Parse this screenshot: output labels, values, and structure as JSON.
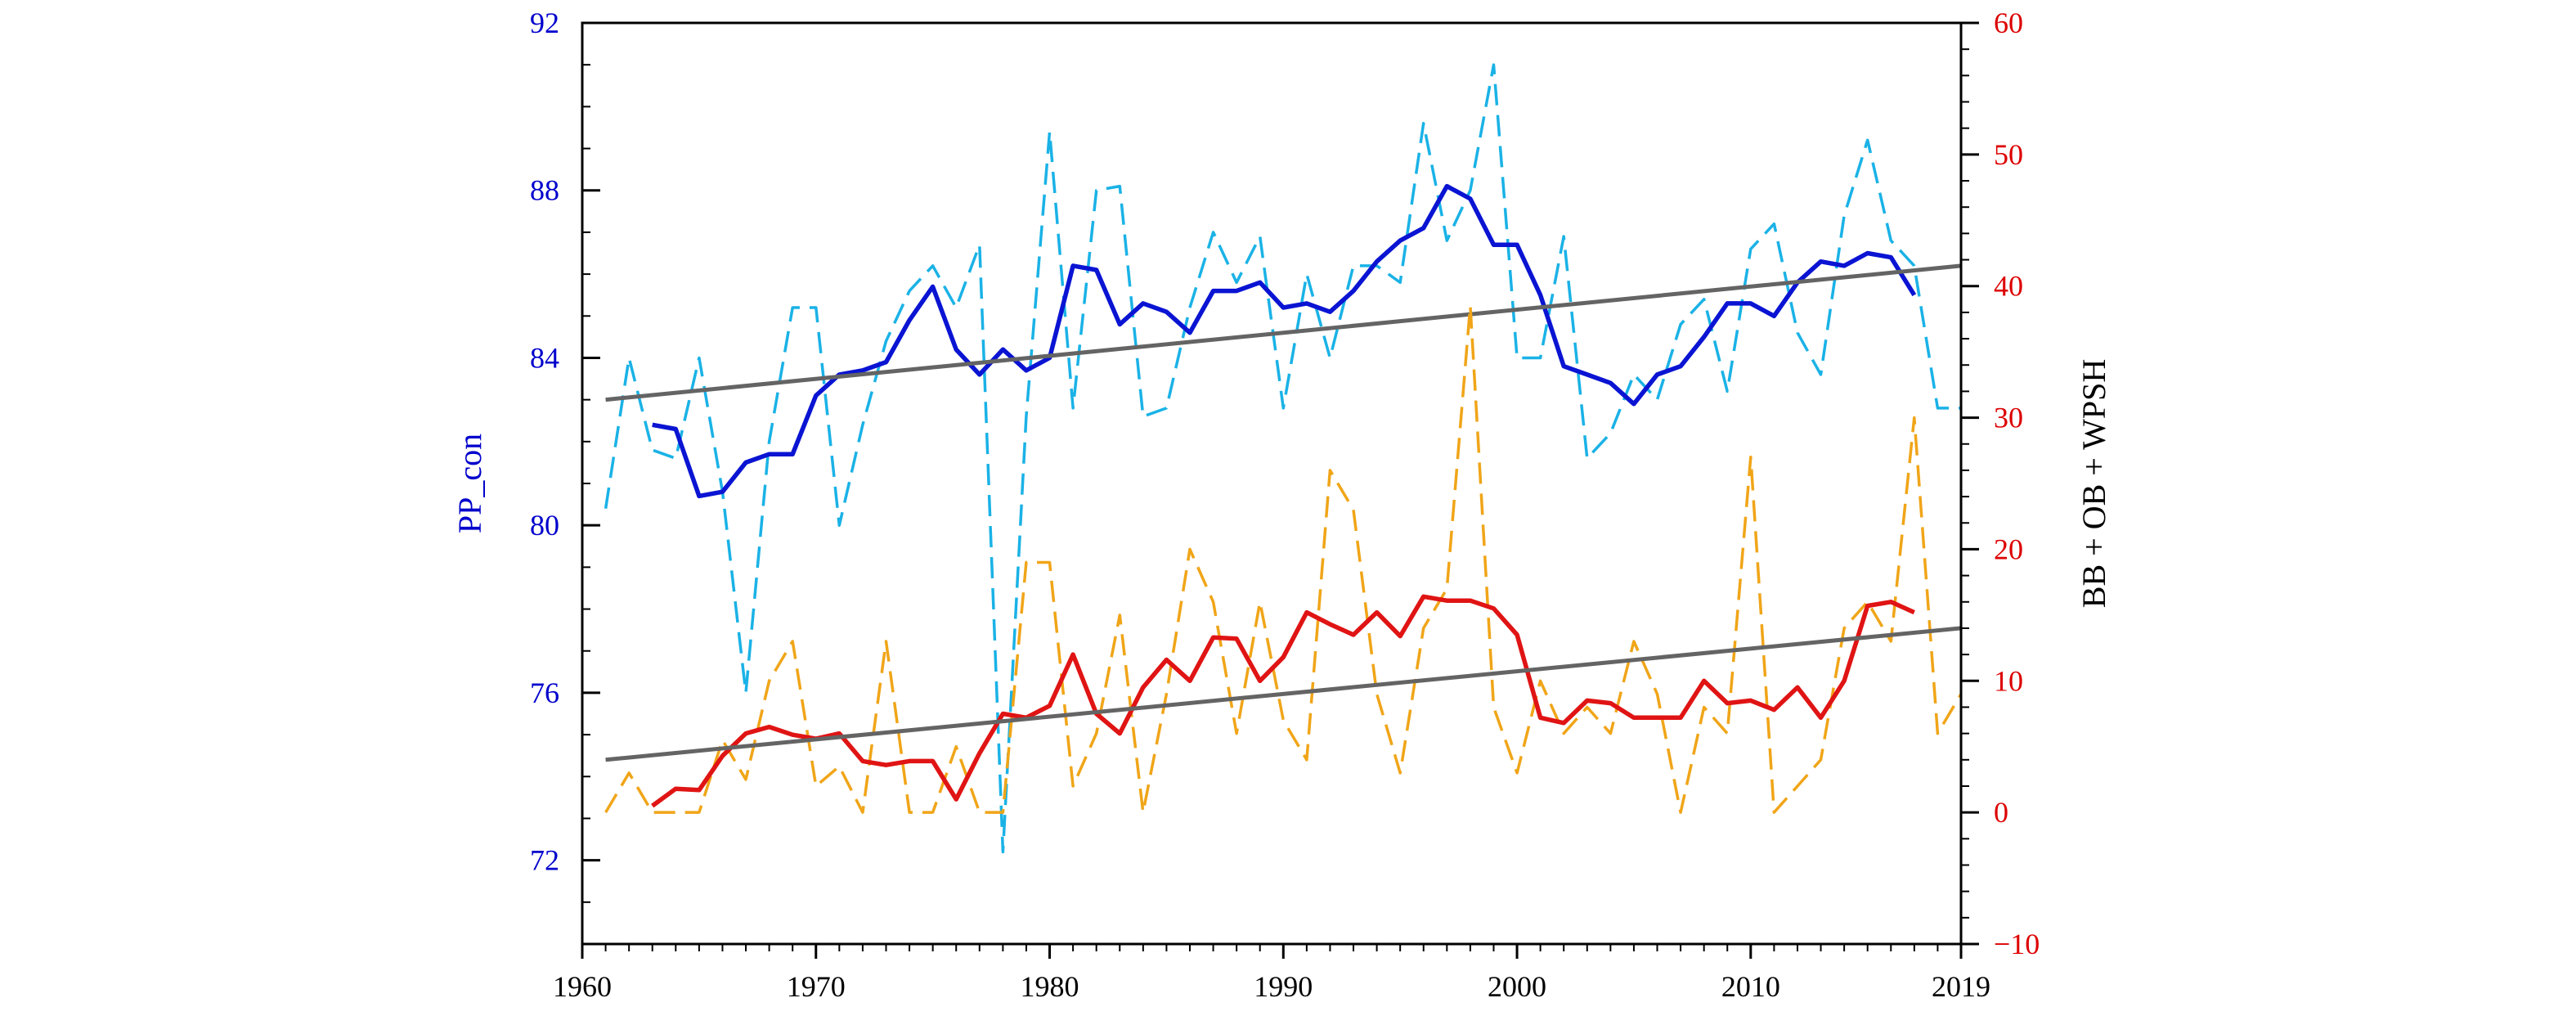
{
  "chart_data": {
    "type": "line",
    "title": "",
    "xlabel": "",
    "ylabel_left": "PP_con",
    "ylabel_right": "BB + OB + WPSH",
    "xlim": [
      1960,
      2019
    ],
    "ylim_left": [
      70,
      92
    ],
    "ylim_right": [
      -10,
      60
    ],
    "x_ticks": [
      "1960",
      "1970",
      "1980",
      "1990",
      "2000",
      "2010",
      "2019"
    ],
    "y_left_ticks": [
      "72",
      "76",
      "80",
      "84",
      "88",
      "92"
    ],
    "y_right_ticks": [
      "−10",
      "0",
      "10",
      "20",
      "30",
      "40",
      "50",
      "60"
    ],
    "grid": false,
    "colors": {
      "left_axis": "#0000cc",
      "right_axis": "#dd0000",
      "pp_raw": "#1ab2e6",
      "pp_smooth": "#0a14d2",
      "bb_raw": "#f0a518",
      "bb_smooth": "#e01414",
      "trend": "#646464"
    },
    "series": [
      {
        "axis": "left",
        "style": "dashed",
        "color_key": "pp_raw",
        "x_start": 1961,
        "values": [
          80.4,
          84.0,
          81.8,
          81.6,
          84.0,
          80.8,
          76.0,
          82.0,
          85.2,
          85.2,
          80.0,
          82.4,
          84.4,
          85.6,
          86.2,
          85.2,
          86.7,
          72.2,
          82.6,
          89.4,
          82.8,
          88.0,
          88.1,
          82.6,
          82.8,
          85.2,
          87.0,
          85.8,
          86.9,
          82.8,
          86.0,
          84.0,
          86.2,
          86.2,
          85.8,
          89.6,
          86.8,
          88.0,
          91.0,
          84.0,
          84.0,
          86.9,
          81.6,
          82.2,
          83.6,
          83.0,
          84.8,
          85.4,
          83.2,
          86.6,
          87.2,
          84.6,
          83.6,
          87.4,
          89.2,
          86.8,
          86.2,
          82.8,
          82.8
        ]
      },
      {
        "axis": "left",
        "style": "solid",
        "color_key": "pp_smooth",
        "x_start": 1963,
        "values": [
          82.4,
          82.3,
          80.7,
          80.8,
          81.5,
          81.7,
          81.7,
          83.1,
          83.6,
          83.7,
          83.9,
          84.9,
          85.7,
          84.2,
          83.6,
          84.2,
          83.7,
          84.0,
          86.2,
          86.1,
          84.8,
          85.3,
          85.1,
          84.6,
          85.6,
          85.6,
          85.8,
          85.2,
          85.3,
          85.1,
          85.6,
          86.3,
          86.8,
          87.1,
          88.1,
          87.8,
          86.7,
          86.7,
          85.5,
          83.8,
          83.6,
          83.4,
          82.9,
          83.6,
          83.8,
          84.5,
          85.3,
          85.3,
          85.0,
          85.8,
          86.3,
          86.2,
          86.5,
          86.4,
          85.5
        ]
      },
      {
        "axis": "left",
        "style": "solid",
        "color_key": "trend",
        "x": [
          1961,
          2019
        ],
        "values": [
          83.0,
          86.2
        ]
      },
      {
        "axis": "right",
        "style": "dashed",
        "color_key": "bb_raw",
        "x_start": 1961,
        "values": [
          0.0,
          3.0,
          0.0,
          0.0,
          0.0,
          5.5,
          2.5,
          10.0,
          13.0,
          2.0,
          3.5,
          0.0,
          13.0,
          0.0,
          0.0,
          5.0,
          0.0,
          0.0,
          19.0,
          19.0,
          2.0,
          6.0,
          15.0,
          0.0,
          9.0,
          20.0,
          16.0,
          6.0,
          16.0,
          7.0,
          4.0,
          26.0,
          23.0,
          9.0,
          3.0,
          14.0,
          17.0,
          38.5,
          8.0,
          3.0,
          10.0,
          6.0,
          8.0,
          6.0,
          13.0,
          9.0,
          0.0,
          8.0,
          6.0,
          27.0,
          0.0,
          2.0,
          4.0,
          14.0,
          16.0,
          13.0,
          30.0,
          6.0,
          9.0
        ]
      },
      {
        "axis": "right",
        "style": "solid",
        "color_key": "bb_smooth",
        "x_start": 1963,
        "values": [
          0.5,
          1.8,
          1.7,
          4.3,
          6.0,
          6.5,
          5.9,
          5.6,
          6.0,
          3.9,
          3.6,
          3.9,
          3.9,
          1.0,
          4.5,
          7.5,
          7.2,
          8.1,
          12.0,
          7.5,
          6.0,
          9.5,
          11.6,
          10.0,
          13.3,
          13.2,
          10.0,
          11.8,
          15.2,
          14.3,
          13.5,
          15.2,
          13.4,
          16.4,
          16.1,
          16.1,
          15.5,
          13.5,
          7.2,
          6.8,
          8.5,
          8.3,
          7.2,
          7.2,
          7.2,
          10.0,
          8.3,
          8.5,
          7.8,
          9.5,
          7.2,
          10.0,
          15.7,
          16.0,
          15.2
        ]
      },
      {
        "axis": "right",
        "style": "solid",
        "color_key": "trend",
        "x": [
          1961,
          2019
        ],
        "values": [
          4.0,
          14.0
        ]
      }
    ]
  }
}
